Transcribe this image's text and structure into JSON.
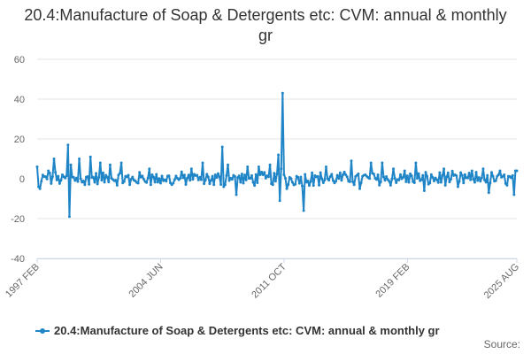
{
  "chart_data": {
    "type": "line",
    "title": "20.4:Manufacture of Soap & Detergents etc: CVM: annual & monthly gr",
    "xlabel": "",
    "ylabel": "",
    "ylim": [
      -40,
      60
    ],
    "yticks": [
      -40,
      -20,
      0,
      20,
      40,
      60
    ],
    "x_range": [
      "1997 FEB",
      "2025 AUG"
    ],
    "xticks": [
      {
        "label": "1997 FEB",
        "index": 0
      },
      {
        "label": "2004 JUN",
        "index": 88
      },
      {
        "label": "2011 OCT",
        "index": 176
      },
      {
        "label": "2019 FEB",
        "index": 264
      },
      {
        "label": "2025 AUG",
        "index": 342
      }
    ],
    "series": [
      {
        "name": "20.4:Manufacture of Soap & Detergents etc: CVM: annual & monthly gr",
        "color": "#1f85c7",
        "n_points": 343,
        "baseline_amplitude": 3,
        "events": [
          {
            "index": 0,
            "value": 6
          },
          {
            "index": 1,
            "value": -4
          },
          {
            "index": 2,
            "value": -5
          },
          {
            "index": 8,
            "value": 4
          },
          {
            "index": 12,
            "value": 10
          },
          {
            "index": 18,
            "value": 2
          },
          {
            "index": 22,
            "value": 17
          },
          {
            "index": 23,
            "value": -19
          },
          {
            "index": 24,
            "value": 7
          },
          {
            "index": 30,
            "value": 10
          },
          {
            "index": 34,
            "value": -3
          },
          {
            "index": 38,
            "value": 11
          },
          {
            "index": 45,
            "value": 8
          },
          {
            "index": 52,
            "value": 7
          },
          {
            "index": 60,
            "value": 8
          },
          {
            "index": 66,
            "value": -3
          },
          {
            "index": 80,
            "value": 5
          },
          {
            "index": 96,
            "value": -3
          },
          {
            "index": 110,
            "value": 5
          },
          {
            "index": 118,
            "value": 8
          },
          {
            "index": 126,
            "value": -3
          },
          {
            "index": 132,
            "value": 16
          },
          {
            "index": 133,
            "value": -4
          },
          {
            "index": 136,
            "value": 7
          },
          {
            "index": 142,
            "value": -8
          },
          {
            "index": 150,
            "value": 6
          },
          {
            "index": 158,
            "value": 6
          },
          {
            "index": 166,
            "value": 7
          },
          {
            "index": 172,
            "value": 12
          },
          {
            "index": 173,
            "value": -11
          },
          {
            "index": 174,
            "value": 5
          },
          {
            "index": 175,
            "value": 43
          },
          {
            "index": 176,
            "value": 2
          },
          {
            "index": 178,
            "value": -5
          },
          {
            "index": 190,
            "value": -16
          },
          {
            "index": 196,
            "value": 3
          },
          {
            "index": 206,
            "value": 6
          },
          {
            "index": 216,
            "value": 3
          },
          {
            "index": 224,
            "value": 9
          },
          {
            "index": 230,
            "value": -5
          },
          {
            "index": 238,
            "value": 8
          },
          {
            "index": 246,
            "value": 8
          },
          {
            "index": 254,
            "value": 5
          },
          {
            "index": 262,
            "value": 4
          },
          {
            "index": 270,
            "value": 8
          },
          {
            "index": 276,
            "value": -6
          },
          {
            "index": 290,
            "value": 5
          },
          {
            "index": 300,
            "value": -4
          },
          {
            "index": 310,
            "value": 4
          },
          {
            "index": 318,
            "value": 5
          },
          {
            "index": 322,
            "value": -7
          },
          {
            "index": 330,
            "value": 4
          },
          {
            "index": 340,
            "value": -8
          },
          {
            "index": 341,
            "value": 4
          },
          {
            "index": 342,
            "value": 4
          }
        ]
      }
    ]
  },
  "legend": {
    "label": "20.4:Manufacture of Soap & Detergents etc: CVM: annual & monthly gr"
  },
  "credits": "Source:"
}
